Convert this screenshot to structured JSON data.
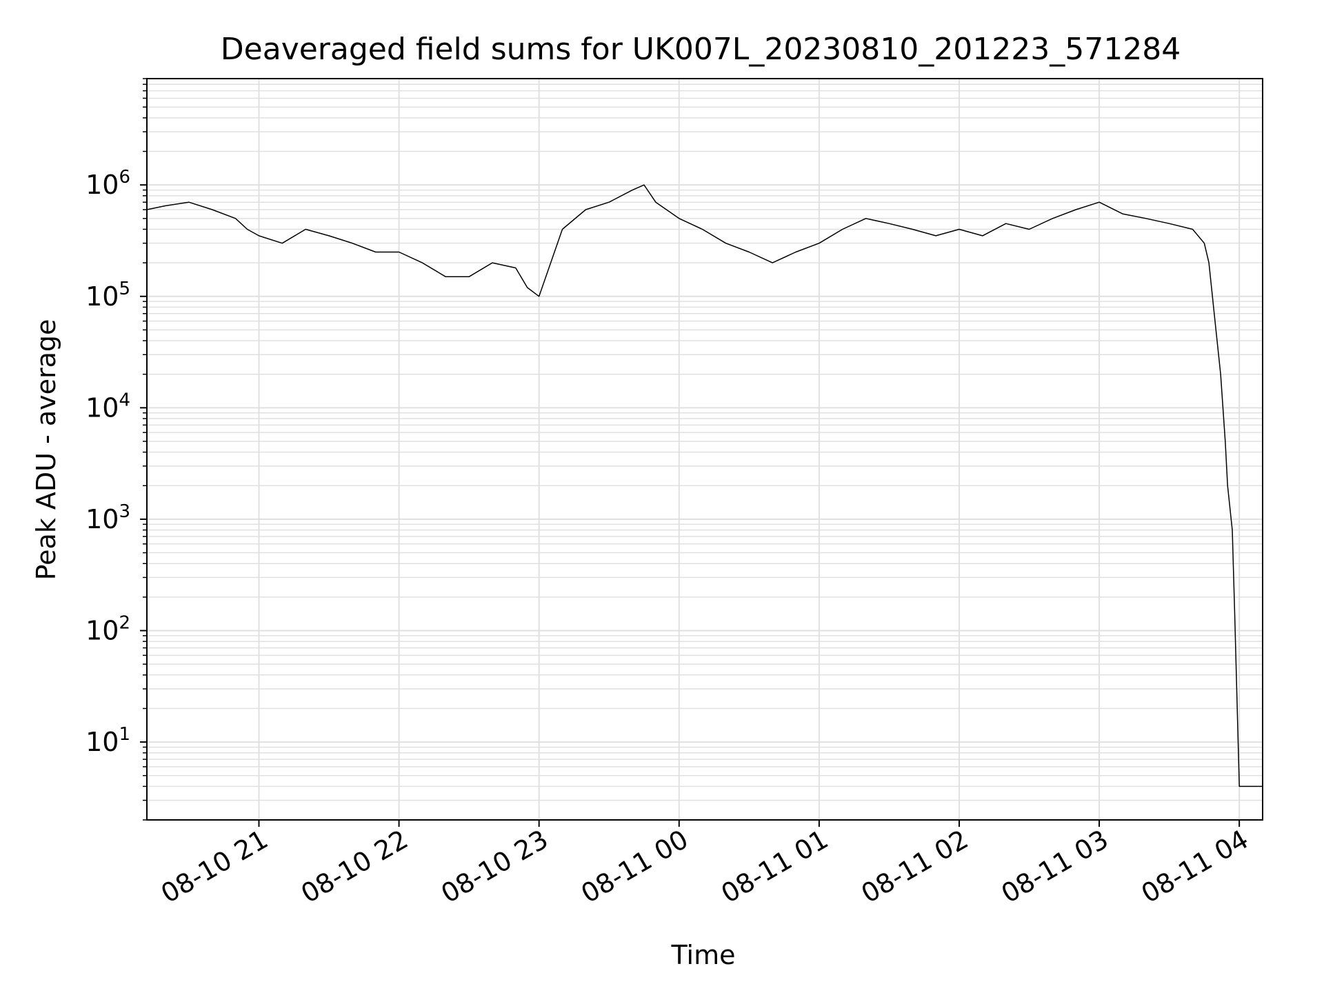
{
  "chart_data": {
    "type": "line",
    "title": "Deaveraged field sums for UK007L_20230810_201223_571284",
    "xlabel": "Time",
    "ylabel": "Peak ADU - average",
    "yscale": "log",
    "ylim": [
      2,
      9000000
    ],
    "xlim": [
      "2023-08-10 20:12",
      "2023-08-11 04:10"
    ],
    "grid": true,
    "line_color": "#000000",
    "grid_color": "#e0e0e0",
    "x_ticks": [
      {
        "value": "2023-08-10 21:00",
        "label": "08-10 21"
      },
      {
        "value": "2023-08-10 22:00",
        "label": "08-10 22"
      },
      {
        "value": "2023-08-10 23:00",
        "label": "08-10 23"
      },
      {
        "value": "2023-08-11 00:00",
        "label": "08-11 00"
      },
      {
        "value": "2023-08-11 01:00",
        "label": "08-11 01"
      },
      {
        "value": "2023-08-11 02:00",
        "label": "08-11 02"
      },
      {
        "value": "2023-08-11 03:00",
        "label": "08-11 03"
      },
      {
        "value": "2023-08-11 04:00",
        "label": "08-11 04"
      }
    ],
    "y_ticks": [
      {
        "value": 10,
        "base": "10",
        "exp": "1"
      },
      {
        "value": 100,
        "base": "10",
        "exp": "2"
      },
      {
        "value": 1000,
        "base": "10",
        "exp": "3"
      },
      {
        "value": 10000,
        "base": "10",
        "exp": "4"
      },
      {
        "value": 100000,
        "base": "10",
        "exp": "5"
      },
      {
        "value": 1000000,
        "base": "10",
        "exp": "6"
      }
    ],
    "series": [
      {
        "x": [
          "2023-08-10 20:12",
          "2023-08-10 20:20",
          "2023-08-10 20:30",
          "2023-08-10 20:40",
          "2023-08-10 20:50",
          "2023-08-10 20:55",
          "2023-08-10 21:00",
          "2023-08-10 21:10",
          "2023-08-10 21:20",
          "2023-08-10 21:30",
          "2023-08-10 21:40",
          "2023-08-10 21:50",
          "2023-08-10 22:00",
          "2023-08-10 22:10",
          "2023-08-10 22:20",
          "2023-08-10 22:30",
          "2023-08-10 22:40",
          "2023-08-10 22:50",
          "2023-08-10 22:55",
          "2023-08-10 23:00",
          "2023-08-10 23:10",
          "2023-08-10 23:20",
          "2023-08-10 23:30",
          "2023-08-10 23:40",
          "2023-08-10 23:45",
          "2023-08-10 23:50",
          "2023-08-11 00:00",
          "2023-08-11 00:10",
          "2023-08-11 00:20",
          "2023-08-11 00:30",
          "2023-08-11 00:40",
          "2023-08-11 00:50",
          "2023-08-11 01:00",
          "2023-08-11 01:10",
          "2023-08-11 01:20",
          "2023-08-11 01:30",
          "2023-08-11 01:40",
          "2023-08-11 01:50",
          "2023-08-11 02:00",
          "2023-08-11 02:10",
          "2023-08-11 02:20",
          "2023-08-11 02:30",
          "2023-08-11 02:40",
          "2023-08-11 02:50",
          "2023-08-11 03:00",
          "2023-08-11 03:10",
          "2023-08-11 03:20",
          "2023-08-11 03:30",
          "2023-08-11 03:40",
          "2023-08-11 03:45",
          "2023-08-11 03:47",
          "2023-08-11 03:50",
          "2023-08-11 03:52",
          "2023-08-11 03:54",
          "2023-08-11 03:55",
          "2023-08-11 03:57",
          "2023-08-11 03:58",
          "2023-08-11 04:00",
          "2023-08-11 04:10"
        ],
        "y": [
          600000,
          650000,
          700000,
          600000,
          500000,
          400000,
          350000,
          300000,
          400000,
          350000,
          300000,
          250000,
          250000,
          200000,
          150000,
          150000,
          200000,
          180000,
          120000,
          100000,
          400000,
          600000,
          700000,
          900000,
          1000000,
          700000,
          500000,
          400000,
          300000,
          250000,
          200000,
          250000,
          300000,
          400000,
          500000,
          450000,
          400000,
          350000,
          400000,
          350000,
          450000,
          400000,
          500000,
          600000,
          700000,
          550000,
          500000,
          450000,
          400000,
          300000,
          200000,
          50000,
          20000,
          5000,
          2000,
          800,
          150,
          4,
          4
        ]
      }
    ]
  }
}
